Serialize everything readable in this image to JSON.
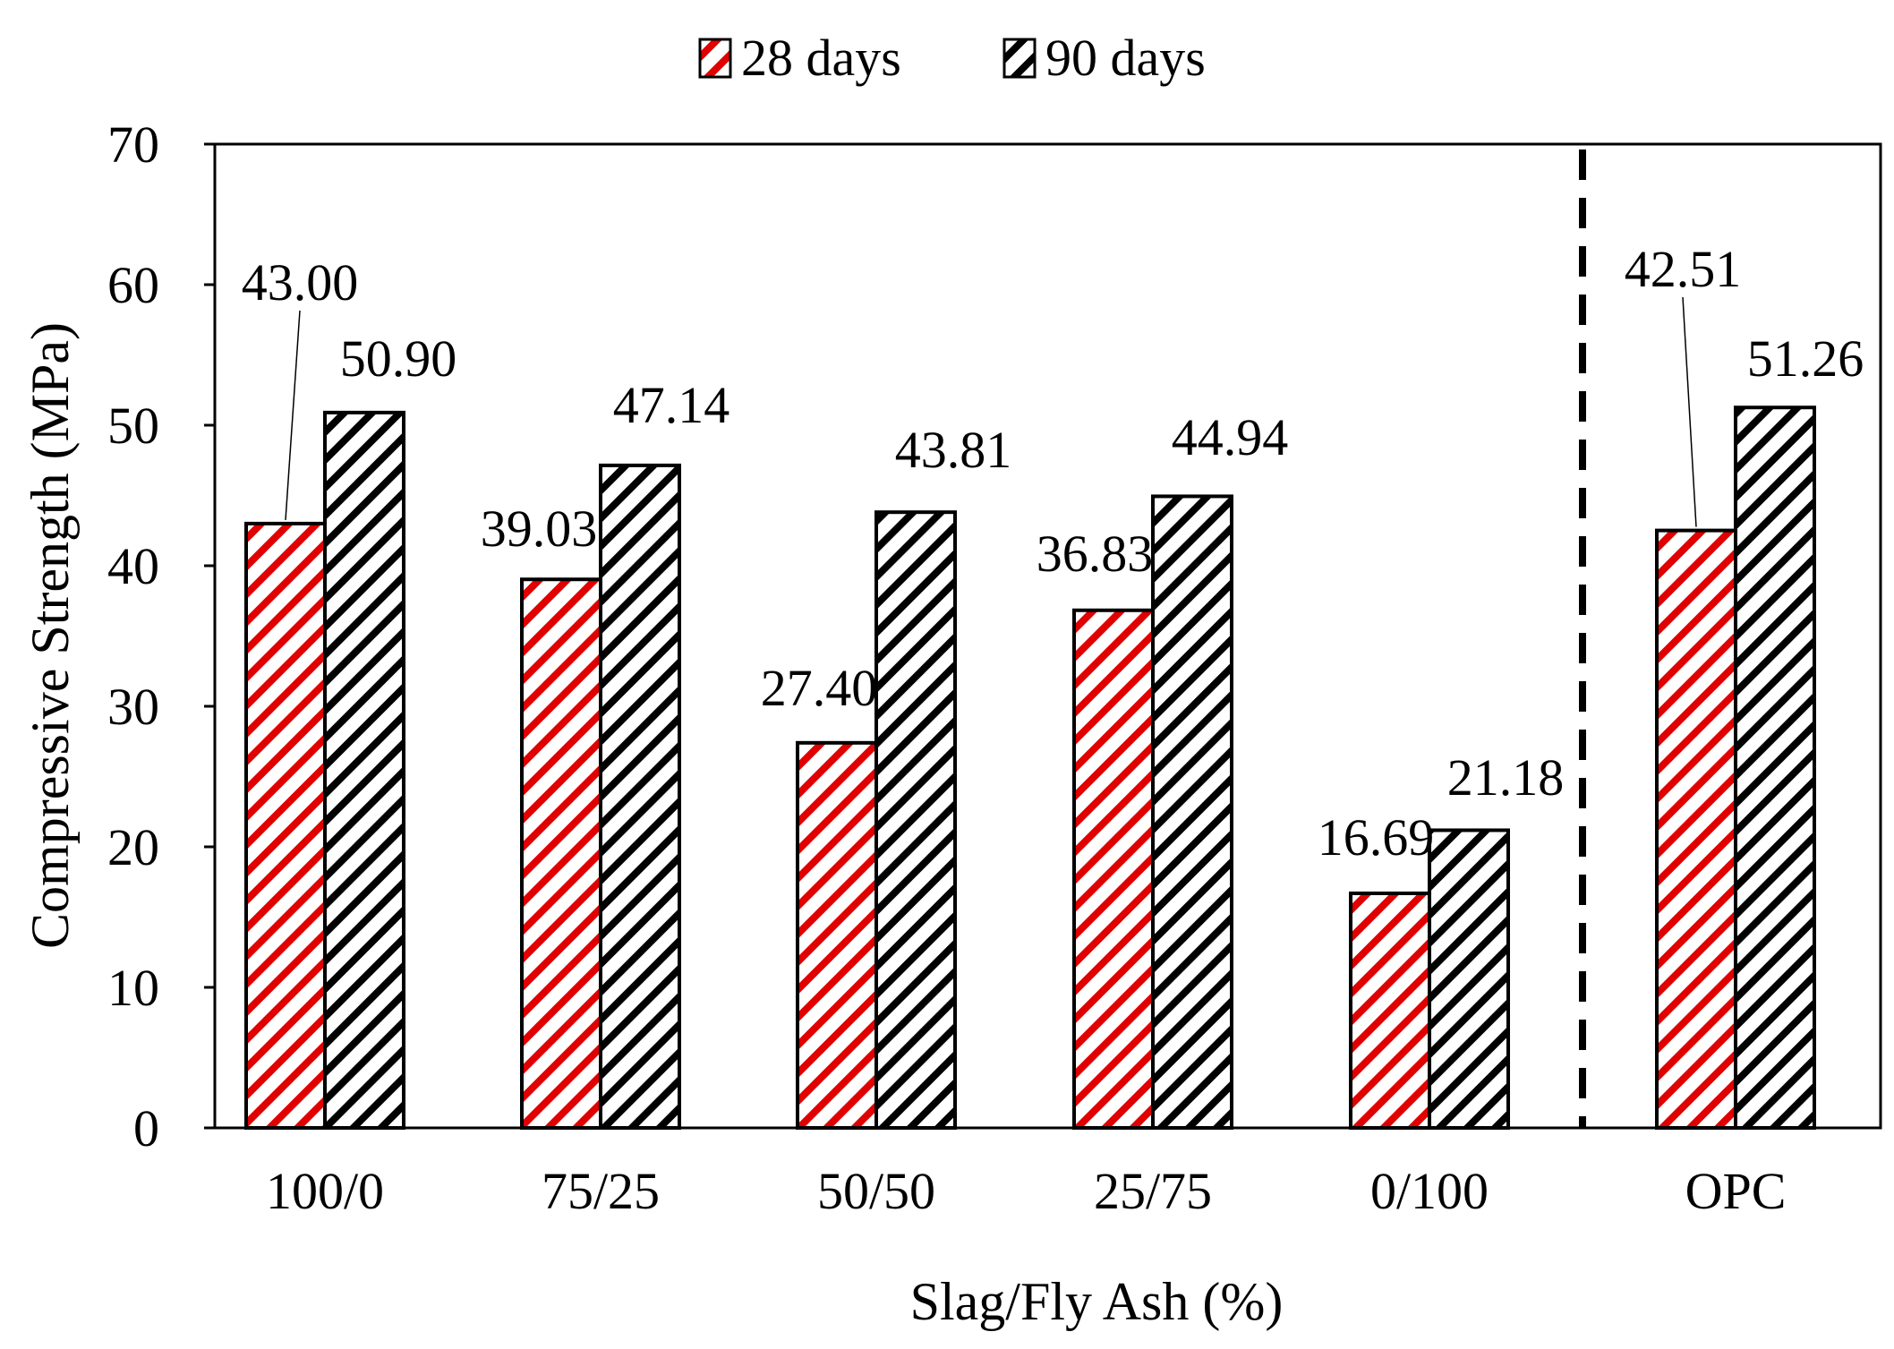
{
  "chart_data": {
    "type": "bar",
    "title": "",
    "xlabel": "Slag/Fly Ash (%)",
    "ylabel": "Compressive Strength (MPa)",
    "categories": [
      "100/0",
      "75/25",
      "50/50",
      "25/75",
      "0/100",
      "OPC"
    ],
    "series": [
      {
        "name": "28 days",
        "values": [
          43.0,
          39.03,
          27.4,
          36.83,
          16.69,
          42.51
        ],
        "color": "#e00000"
      },
      {
        "name": "90 days",
        "values": [
          50.9,
          47.14,
          43.81,
          44.94,
          21.18,
          51.26
        ],
        "color": "#000000"
      }
    ],
    "data_labels": {
      "28 days": [
        "43.00",
        "39.03",
        "27.40",
        "36.83",
        "16.69",
        "42.51"
      ],
      "90 days": [
        "50.90",
        "47.14",
        "43.81",
        "44.94",
        "21.18",
        "51.26"
      ]
    },
    "ylim": [
      0,
      70
    ],
    "yticks": [
      0,
      10,
      20,
      30,
      40,
      50,
      60,
      70
    ],
    "ytick_labels": [
      "0",
      "10",
      "20",
      "30",
      "40",
      "50",
      "60",
      "70"
    ],
    "grid": false,
    "legend_position": "top-center",
    "separator": {
      "type": "dashed-vertical-line",
      "between": [
        "0/100",
        "OPC"
      ]
    }
  }
}
